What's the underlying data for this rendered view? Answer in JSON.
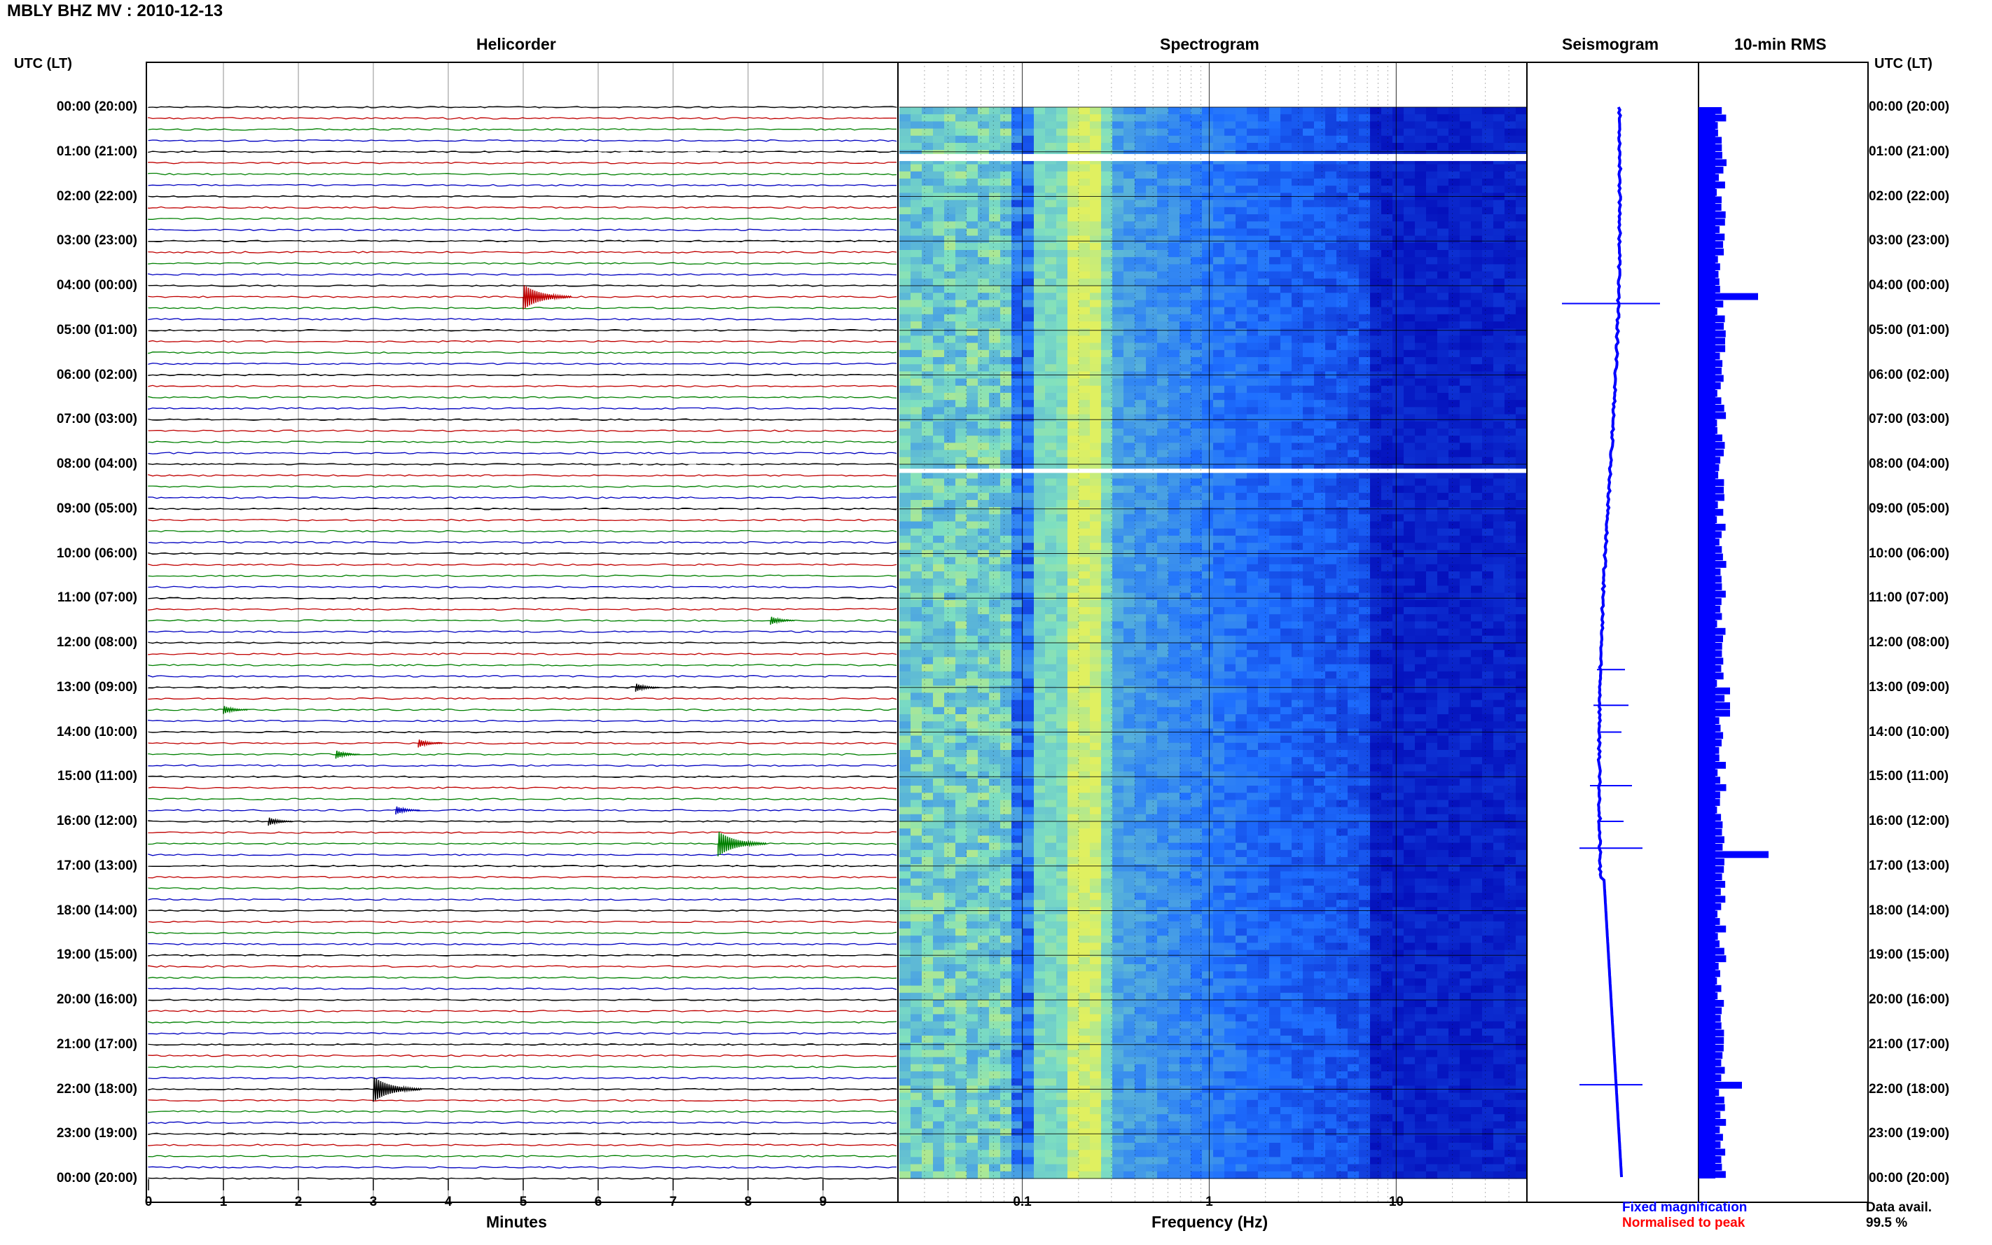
{
  "title": "MBLY BHZ MV : 2010-12-13",
  "sections": {
    "helicorder": "Helicorder",
    "spectrogram": "Spectrogram",
    "seismogram": "Seismogram",
    "rms": "10-min RMS"
  },
  "left_axis_header": "UTC (LT)",
  "right_axis_header": "UTC (LT)",
  "time_labels": [
    "00:00 (20:00)",
    "01:00 (21:00)",
    "02:00 (22:00)",
    "03:00 (23:00)",
    "04:00 (00:00)",
    "05:00 (01:00)",
    "06:00 (02:00)",
    "07:00 (03:00)",
    "08:00 (04:00)",
    "09:00 (05:00)",
    "10:00 (06:00)",
    "11:00 (07:00)",
    "12:00 (08:00)",
    "13:00 (09:00)",
    "14:00 (10:00)",
    "15:00 (11:00)",
    "16:00 (12:00)",
    "17:00 (13:00)",
    "18:00 (14:00)",
    "19:00 (15:00)",
    "20:00 (16:00)",
    "21:00 (17:00)",
    "22:00 (18:00)",
    "23:00 (19:00)",
    "00:00 (20:00)"
  ],
  "helicorder_x_ticks": [
    "0",
    "1",
    "2",
    "3",
    "4",
    "5",
    "6",
    "7",
    "8",
    "9"
  ],
  "helicorder_x_label": "Minutes",
  "spectrogram_x_ticks": [
    "0.1",
    "1",
    "10"
  ],
  "spectrogram_x_label": "Frequency (Hz)",
  "legend": {
    "fixed": "Fixed magnification",
    "normalised": "Normalised to peak",
    "fixed_color": "#0000ff",
    "normalised_color": "#ff0000"
  },
  "data_availability": {
    "label": "Data avail.",
    "value": "99.5 %"
  },
  "trace_colors": [
    "#000000",
    "#c00000",
    "#008000",
    "#0000c0"
  ],
  "spectrogram_colors": {
    "low": "#0000b0",
    "mid": "#1e6fff",
    "high": "#7fe0c0",
    "peak": "#e0f060"
  },
  "rms_color": "#0000ff",
  "events_minutes": [
    {
      "hour": 4.2,
      "minute": 5.0
    },
    {
      "hour": 11.5,
      "minute": 8.3
    },
    {
      "hour": 13.0,
      "minute": 6.5
    },
    {
      "hour": 13.5,
      "minute": 1.0
    },
    {
      "hour": 14.5,
      "minute": 2.5
    },
    {
      "hour": 14.3,
      "minute": 3.6
    },
    {
      "hour": 15.7,
      "minute": 3.3
    },
    {
      "hour": 15.9,
      "minute": 1.6
    },
    {
      "hour": 16.5,
      "minute": 7.6
    },
    {
      "hour": 21.9,
      "minute": 3.0
    }
  ]
}
